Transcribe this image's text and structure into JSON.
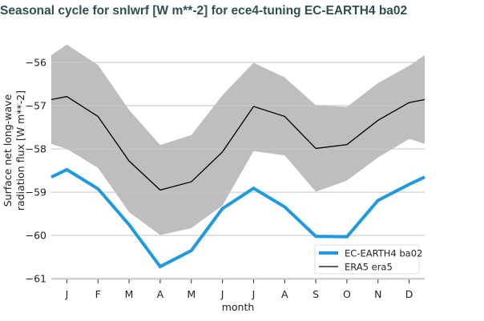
{
  "title": "Seasonal cycle for snlwrf [W m**-2] for ece4-tuning EC-EARTH4 ba02",
  "chart_data": {
    "type": "line",
    "title": "Seasonal cycle for snlwrf [W m**-2] for ece4-tuning EC-EARTH4 ba02",
    "xlabel": "month",
    "ylabel": "Surface net long-wave radiation flux [W m**-2]",
    "ylabel_lines": [
      "Surface net long-wave",
      "radiation flux [W m**-2]"
    ],
    "categories": [
      "J",
      "F",
      "M",
      "A",
      "M",
      "J",
      "J",
      "A",
      "S",
      "O",
      "N",
      "D"
    ],
    "yticks": [
      -56,
      -57,
      -58,
      -59,
      -60,
      -61
    ],
    "ytick_labels": [
      "−56",
      "−57",
      "−58",
      "−59",
      "−60",
      "−61"
    ],
    "ylim": [
      -61.07,
      -55.3
    ],
    "grid": "horizontal",
    "legend_placement": "lower-right",
    "series": [
      {
        "name": "EC-EARTH4 ba02",
        "color": "#1f9ae0",
        "values": [
          -58.48,
          -58.92,
          -59.75,
          -60.72,
          -60.35,
          -59.38,
          -58.91,
          -59.34,
          -60.02,
          -60.03,
          -59.19,
          -58.82
        ]
      },
      {
        "name": "ERA5 era5",
        "color": "#000000",
        "values": [
          -56.79,
          -57.25,
          -58.28,
          -58.95,
          -58.76,
          -58.07,
          -57.02,
          -57.25,
          -57.99,
          -57.9,
          -57.34,
          -56.93
        ]
      }
    ],
    "band": {
      "color": "#bebebe",
      "upper": [
        -55.59,
        -56.06,
        -57.1,
        -57.91,
        -57.68,
        -56.76,
        -56.01,
        -56.35,
        -56.99,
        -57.03,
        -56.48,
        -56.08
      ],
      "lower": [
        -58.0,
        -58.44,
        -59.46,
        -59.99,
        -59.83,
        -59.31,
        -58.05,
        -58.15,
        -58.99,
        -58.73,
        -58.2,
        -57.77
      ]
    }
  }
}
